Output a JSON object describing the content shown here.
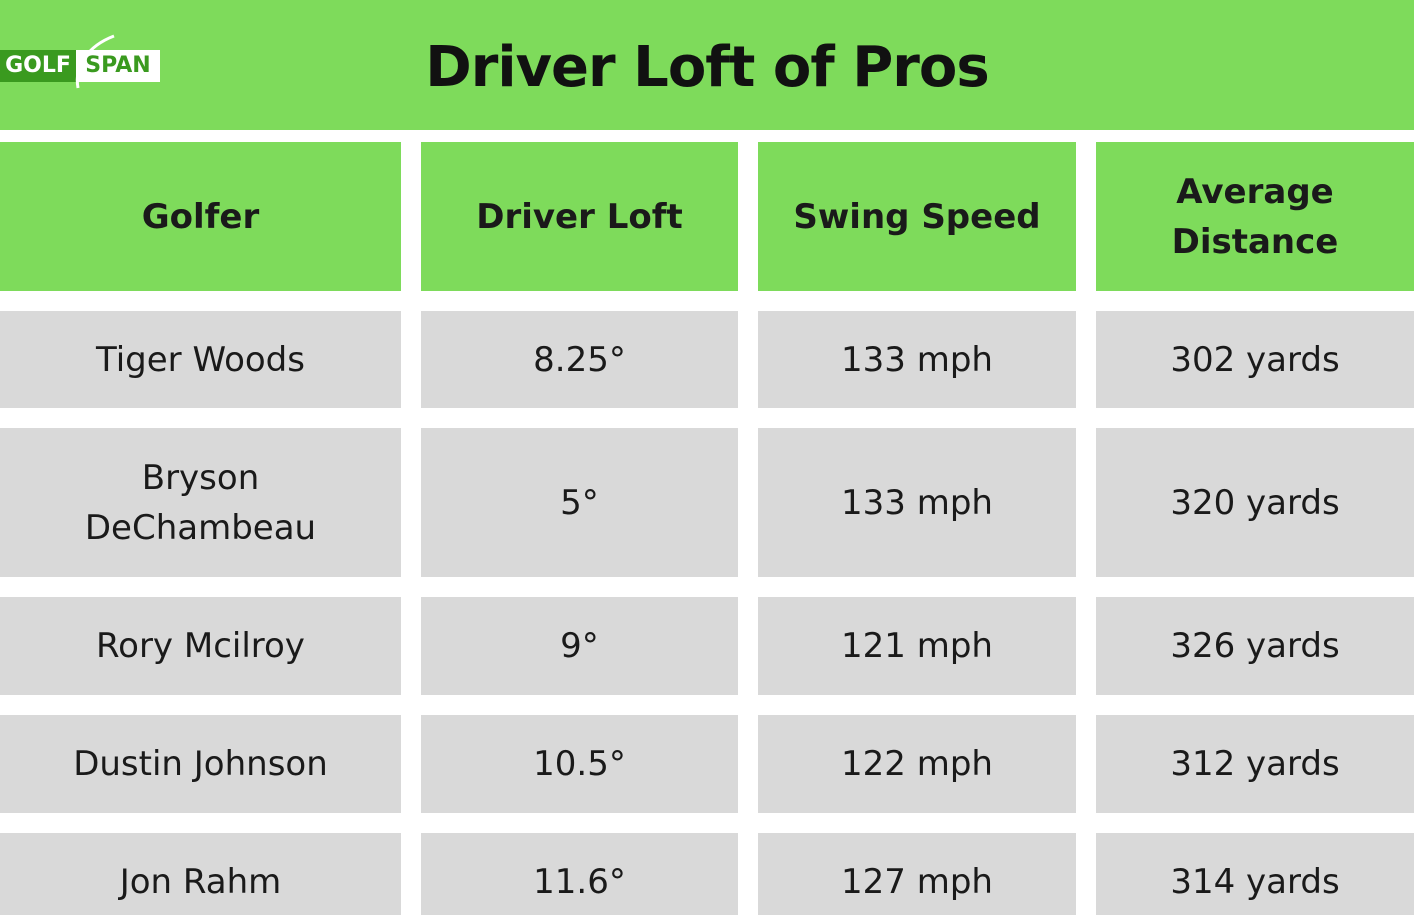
{
  "logo": {
    "golf_text": "GOLF",
    "span_text": "SPAN"
  },
  "chart_data": {
    "type": "table",
    "title": "Driver Loft of Pros",
    "columns": [
      "Golfer",
      "Driver Loft",
      "Swing Speed",
      "Average Distance"
    ],
    "rows": [
      [
        "Tiger Woods",
        "8.25°",
        "133 mph",
        "302 yards"
      ],
      [
        "Bryson DeChambeau",
        "5°",
        "133 mph",
        "320 yards"
      ],
      [
        "Rory Mcilroy",
        "9°",
        "121 mph",
        "326 yards"
      ],
      [
        "Dustin Johnson",
        "10.5°",
        "122 mph",
        "312 yards"
      ],
      [
        "Jon Rahm",
        "11.6°",
        "127 mph",
        "314 yards"
      ]
    ]
  },
  "colors": {
    "header_green": "#7edb5b",
    "cell_gray": "#d9d9d9",
    "logo_green": "#3a9a1f"
  }
}
